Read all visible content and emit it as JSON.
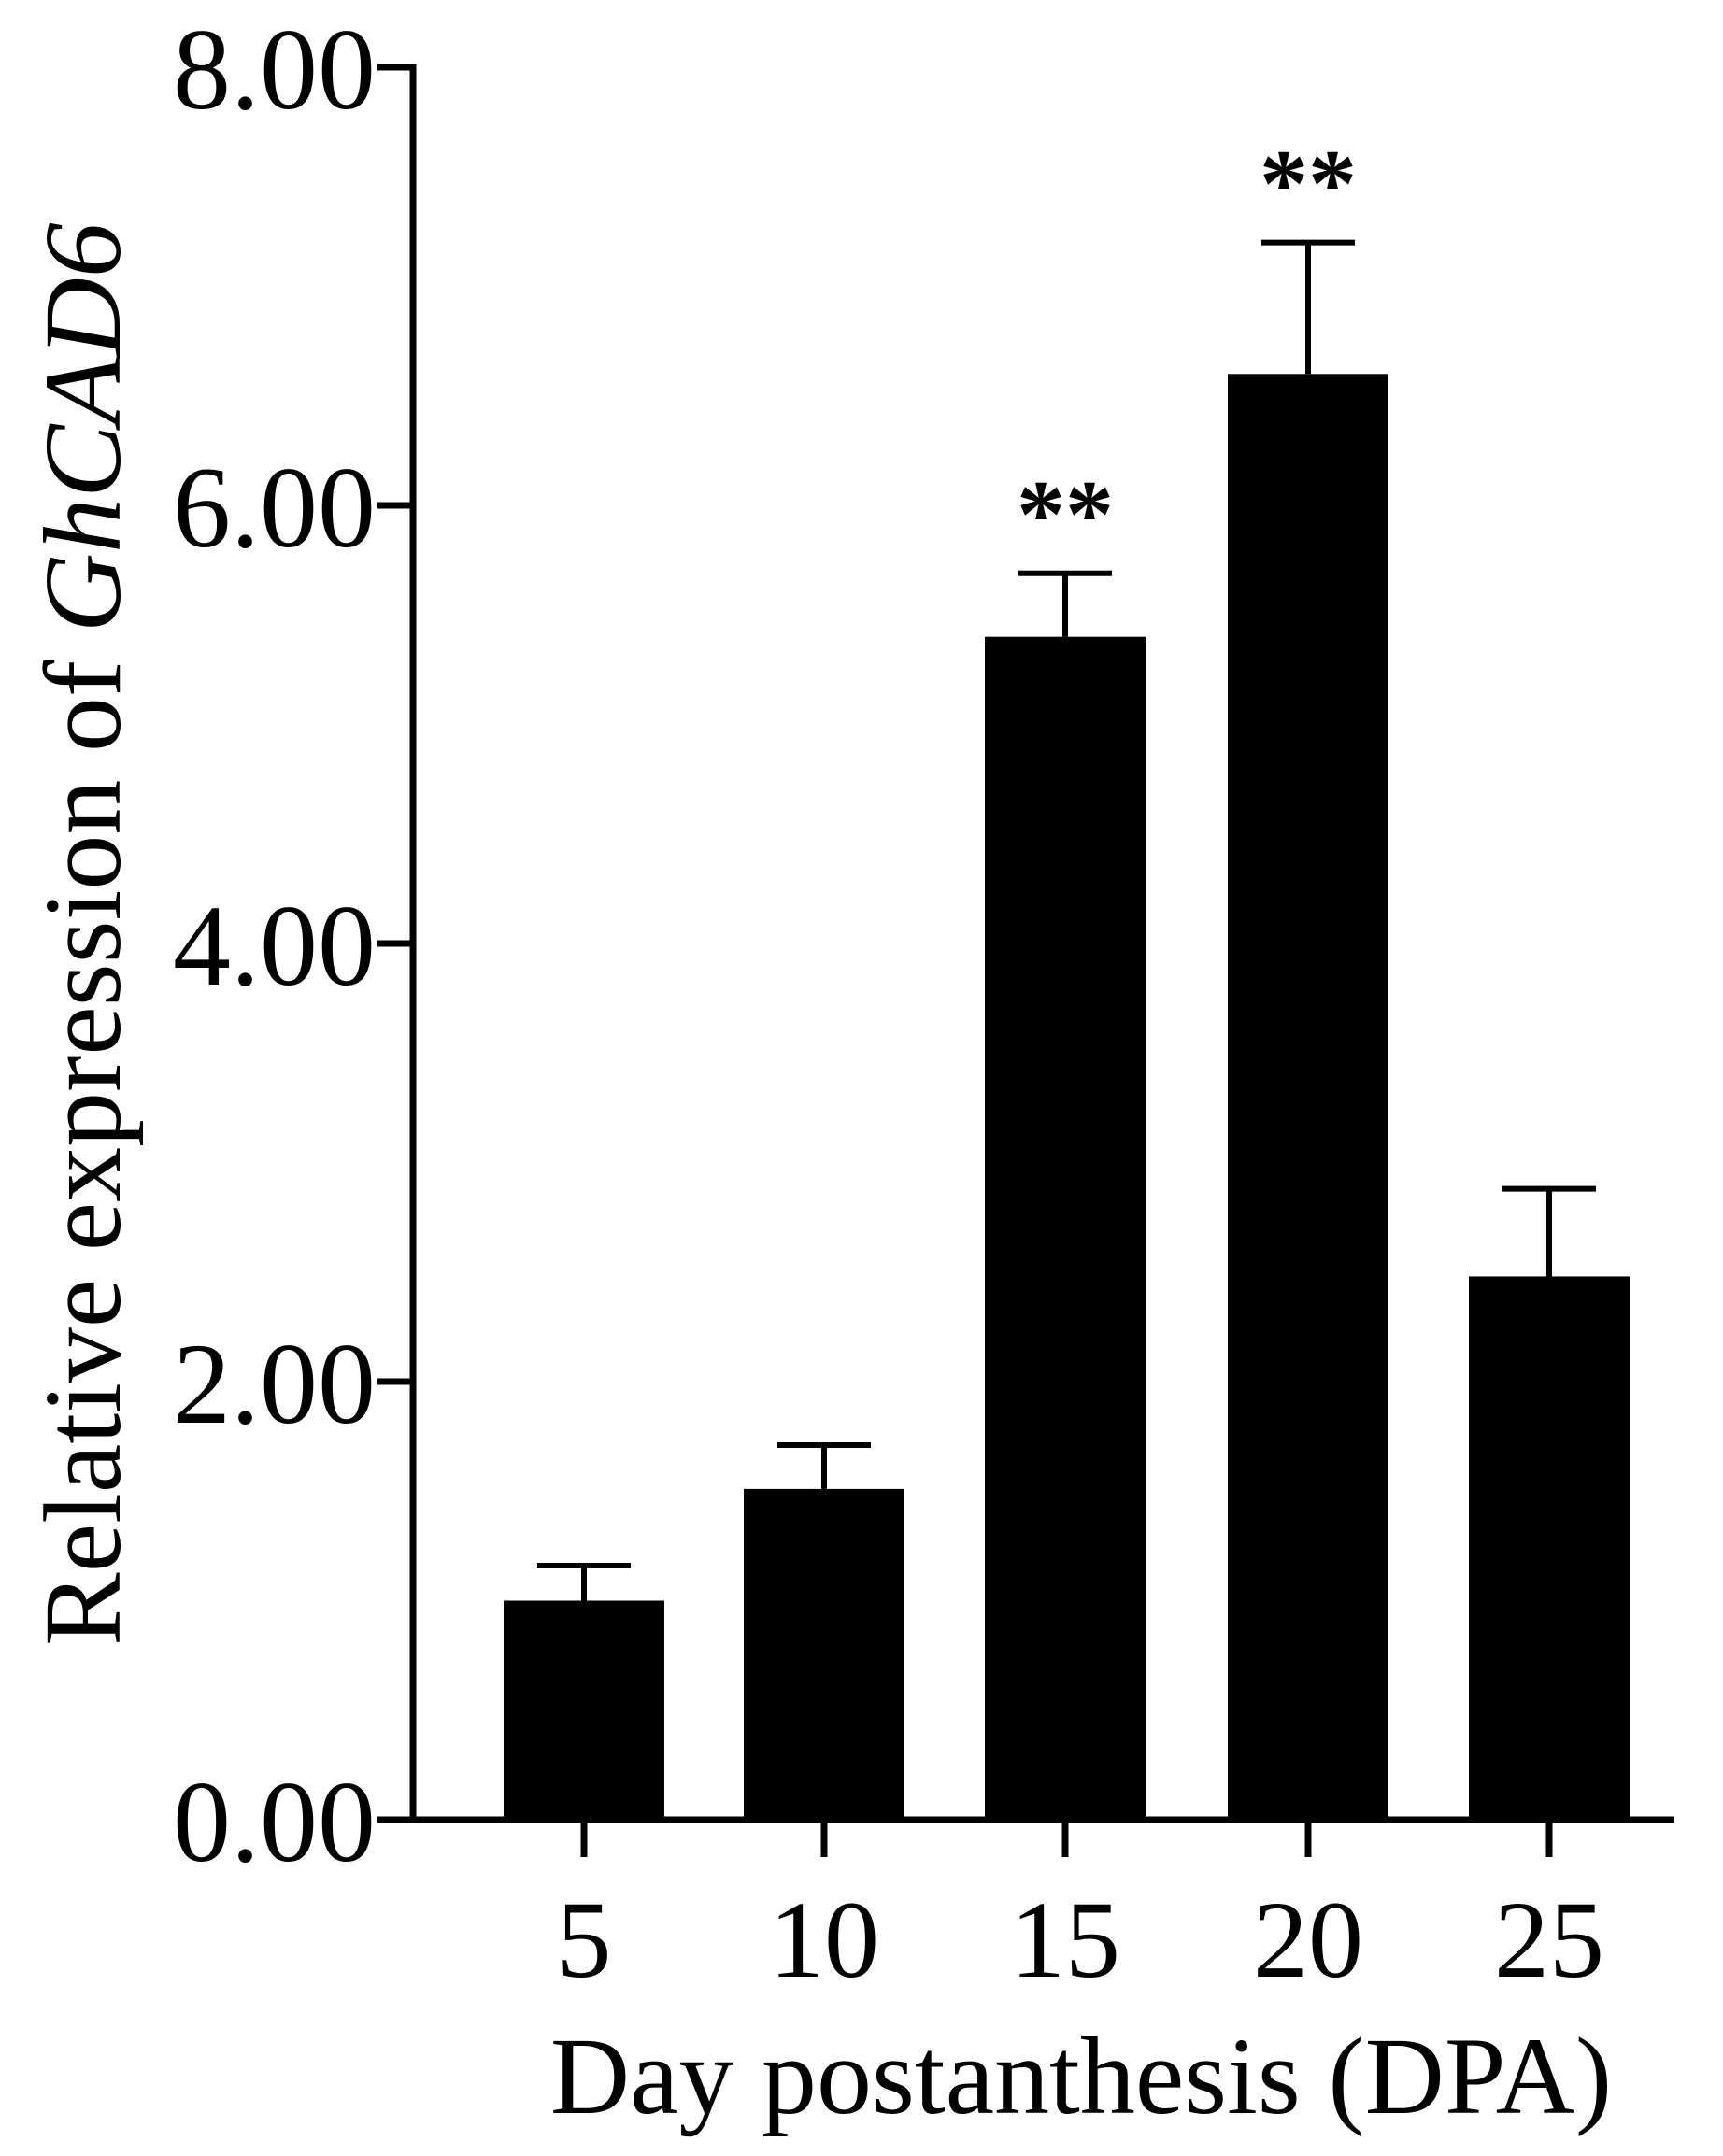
{
  "chart_data": {
    "type": "bar",
    "title": "",
    "xlabel": "Day postanthesis (DPA)",
    "ylabel_prefix": "Relative expression of ",
    "ylabel_gene": "GhCAD6",
    "categories": [
      "5",
      "10",
      "15",
      "20",
      "25"
    ],
    "values": [
      1.0,
      1.51,
      5.4,
      6.6,
      2.48
    ],
    "errors": [
      0.16,
      0.2,
      0.29,
      0.6,
      0.4
    ],
    "annotations": [
      "",
      "",
      "**",
      "**",
      ""
    ],
    "ylim": [
      0,
      8
    ],
    "yticks": [
      0,
      2,
      4,
      6,
      8
    ],
    "ytick_labels": [
      "0.00",
      "2.00",
      "4.00",
      "6.00",
      "8.00"
    ],
    "grid": false,
    "legend": "none",
    "bar_color": "#000000"
  }
}
